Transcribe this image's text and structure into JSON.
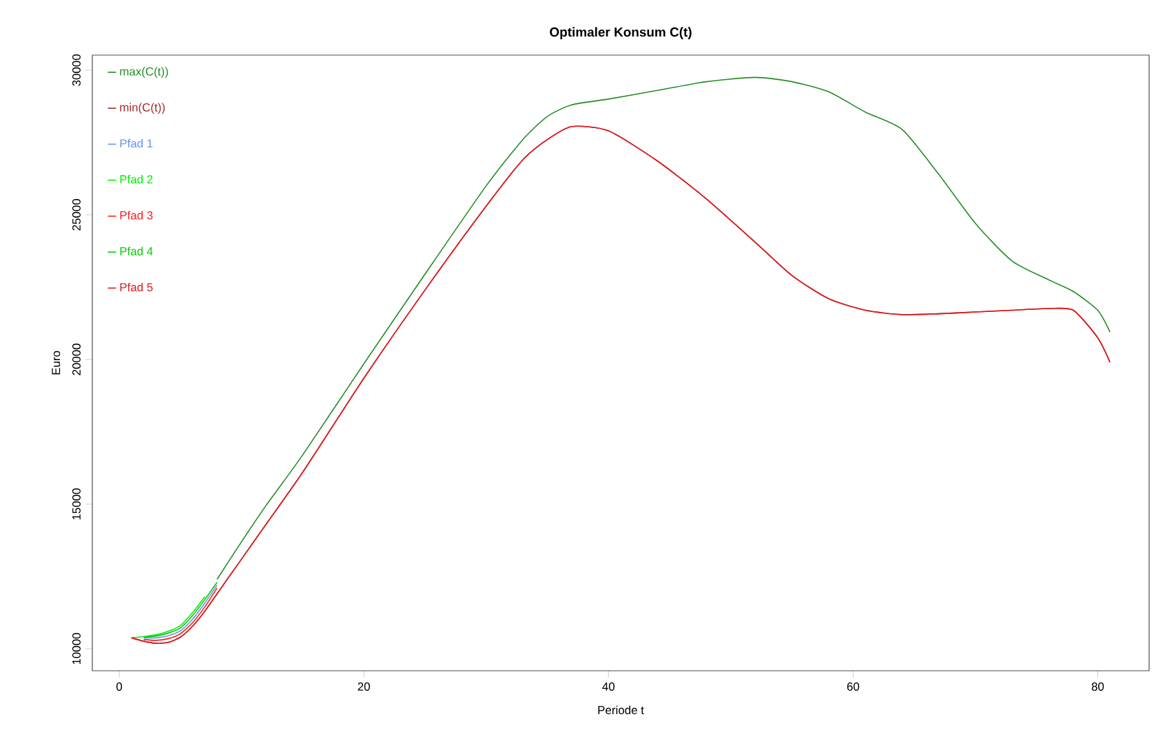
{
  "chart_data": {
    "type": "line",
    "title": "Optimaler Konsum C(t)",
    "xlabel": "Periode t",
    "ylabel": "Euro",
    "x": [
      1,
      2,
      3,
      4,
      5,
      6,
      7,
      8,
      10,
      12,
      15,
      20,
      25,
      30,
      33,
      35,
      37,
      40,
      44,
      48,
      52,
      55,
      58,
      61,
      64,
      67,
      70,
      73,
      76,
      78,
      80,
      81
    ],
    "series": [
      {
        "name": "max(C(t))",
        "color": "#228b22",
        "values": [
          null,
          null,
          null,
          null,
          null,
          null,
          null,
          12400,
          13700,
          14950,
          16700,
          19850,
          22950,
          26000,
          27600,
          28400,
          28800,
          29000,
          29300,
          29600,
          29750,
          29600,
          29250,
          28550,
          27950,
          26400,
          24700,
          23400,
          22750,
          22350,
          21700,
          20950
        ]
      },
      {
        "name": "min(C(t))",
        "color": "#a52a2a",
        "values": [
          10380,
          10260,
          10190,
          10220,
          10400,
          10780,
          11300,
          11900,
          13100,
          14300,
          16100,
          19350,
          22400,
          25300,
          26900,
          27600,
          28050,
          27900,
          26860,
          25550,
          24050,
          22900,
          22100,
          21700,
          21550,
          21580,
          21640,
          21700,
          21760,
          21700,
          20750,
          19900
        ]
      },
      {
        "name": "Pfad 1",
        "color": "#6495ed",
        "values": [
          null,
          10370,
          10380,
          10450,
          10620,
          11020,
          11580,
          12200,
          null,
          null,
          null,
          null,
          null,
          null,
          null,
          null,
          null,
          null,
          null,
          null,
          null,
          null,
          null,
          null,
          null,
          null,
          null,
          null,
          null,
          null,
          null,
          null
        ]
      },
      {
        "name": "Pfad 2",
        "color": "#00ee00",
        "values": [
          10380,
          10420,
          10480,
          10600,
          10800,
          11250,
          11800,
          null,
          null,
          null,
          null,
          null,
          null,
          null,
          null,
          null,
          null,
          null,
          null,
          null,
          null,
          null,
          null,
          null,
          null,
          null,
          null,
          null,
          null,
          null,
          null,
          null
        ]
      },
      {
        "name": "Pfad 3",
        "color": "#ff1a1a",
        "values": [
          null,
          10320,
          10290,
          10350,
          10520,
          10900,
          11450,
          12100,
          null,
          null,
          null,
          null,
          null,
          null,
          null,
          null,
          null,
          null,
          null,
          null,
          null,
          null,
          null,
          null,
          null,
          null,
          null,
          null,
          null,
          null,
          null,
          null
        ]
      },
      {
        "name": "Pfad 4",
        "color": "#00cd00",
        "values": [
          null,
          10400,
          10440,
          10540,
          10720,
          11150,
          11700,
          12300,
          null,
          null,
          null,
          null,
          null,
          null,
          null,
          null,
          null,
          null,
          null,
          null,
          null,
          null,
          null,
          null,
          null,
          null,
          null,
          null,
          null,
          null,
          null,
          null
        ]
      },
      {
        "name": "Pfad 5",
        "color": "#dd1c1c",
        "values": [
          10380,
          10260,
          10190,
          10220,
          10400,
          10780,
          11300,
          11900,
          13100,
          14300,
          16100,
          19350,
          22400,
          25300,
          26900,
          27600,
          28050,
          27900,
          26860,
          25550,
          24050,
          22900,
          22100,
          21700,
          21550,
          21580,
          21640,
          21700,
          21760,
          21700,
          20750,
          19900
        ]
      }
    ],
    "xlim": [
      -2.2,
      84.2
    ],
    "ylim": [
      9240,
      30520
    ],
    "xticks": [
      0,
      20,
      40,
      60,
      80
    ],
    "yticks": [
      10000,
      15000,
      20000,
      25000,
      30000
    ],
    "legend": "top left",
    "line_style": "solid"
  }
}
